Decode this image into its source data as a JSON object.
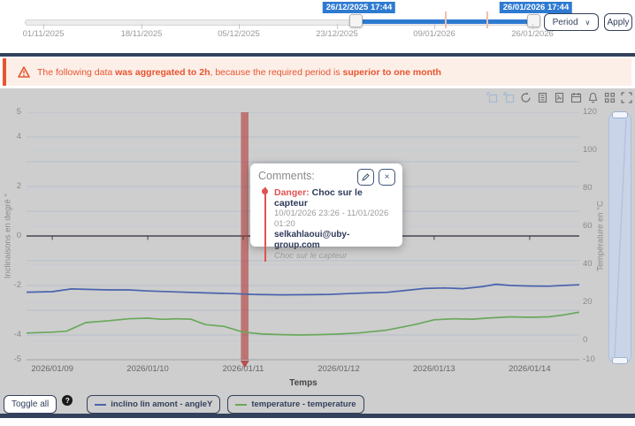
{
  "timeline": {
    "handles": [
      {
        "label": "26/12/2025 17:44"
      },
      {
        "label": "26/01/2026 17:44"
      }
    ],
    "ticks": [
      "01/11/2025",
      "18/11/2025",
      "05/12/2025",
      "23/12/2025",
      "09/01/2026",
      "26/01/2026"
    ],
    "period_button": "Period",
    "period_chevron": "∨",
    "apply_button": "Apply",
    "accent_color": "#2e7ad1"
  },
  "banner": {
    "parts": [
      {
        "text": "The following data ",
        "bold": false
      },
      {
        "text": "was aggregated to 2h",
        "bold": true
      },
      {
        "text": ", because the required period is ",
        "bold": false
      },
      {
        "text": "superior to one month",
        "bold": true
      }
    ],
    "color": "#e8542f"
  },
  "toolbar_icons": [
    "zoom-select",
    "zoom-back",
    "restore",
    "data-view",
    "save-image",
    "calendar",
    "alarm-bell",
    "grid-code",
    "focus"
  ],
  "comments": {
    "title": "Comments:",
    "close_icon": "×",
    "entry": {
      "severity": "Danger:",
      "heading": "Choc sur le capteur",
      "period": "10/01/2026 23:26 - 11/01/2026 01:20",
      "author": "selkahlaoui@uby-group.com",
      "note": "Choc sur le capteur"
    }
  },
  "legend": {
    "toggle_all": "Toggle all",
    "help_badge": "?",
    "items": [
      {
        "label": "inclino lin amont - angleY",
        "color": "#4a63ad"
      },
      {
        "label": "temperature - temperature",
        "color": "#6aa85c"
      }
    ]
  },
  "chart_data": {
    "type": "line",
    "xlabel": "Temps",
    "ylabel_left": "Inclinaisons en degré °",
    "ylabel_right": "Température en °C",
    "x_domain_days": [
      8.73,
      14.52
    ],
    "x_ticks": [
      {
        "day": 9,
        "label": "2026/01/09"
      },
      {
        "day": 10,
        "label": "2026/01/10"
      },
      {
        "day": 11,
        "label": "2026/01/11"
      },
      {
        "day": 12,
        "label": "2026/01/12"
      },
      {
        "day": 13,
        "label": "2026/01/13"
      },
      {
        "day": 14,
        "label": "2026/01/14"
      }
    ],
    "y_left": {
      "min": -5,
      "max": 5,
      "tick_step": 1,
      "labeled_ticks": [
        {
          "v": 5,
          "label": "5"
        },
        {
          "v": 4,
          "label": "4"
        },
        {
          "v": 2,
          "label": "2"
        },
        {
          "v": 0,
          "label": "0"
        },
        {
          "v": -2,
          "label": "-2"
        },
        {
          "v": -4,
          "label": "-4"
        },
        {
          "v": -5,
          "label": "-5"
        }
      ]
    },
    "y_right": {
      "min": -10,
      "max": 120,
      "labeled_ticks": [
        {
          "v": 120,
          "label": "120"
        },
        {
          "v": 100,
          "label": "100"
        },
        {
          "v": 80,
          "label": "80"
        },
        {
          "v": 60,
          "label": "60"
        },
        {
          "v": 40,
          "label": "40"
        },
        {
          "v": 20,
          "label": "20"
        },
        {
          "v": 0,
          "label": "0"
        },
        {
          "v": -10,
          "label": "-10"
        }
      ]
    },
    "series": [
      {
        "name": "inclino lin amont - angleY",
        "axis": "left",
        "color": "#4a63ad",
        "points": [
          [
            8.73,
            -2.27
          ],
          [
            9.0,
            -2.25
          ],
          [
            9.2,
            -2.14
          ],
          [
            9.4,
            -2.16
          ],
          [
            9.6,
            -2.18
          ],
          [
            9.8,
            -2.18
          ],
          [
            10.0,
            -2.22
          ],
          [
            10.3,
            -2.26
          ],
          [
            10.6,
            -2.3
          ],
          [
            10.9,
            -2.33
          ],
          [
            11.1,
            -2.36
          ],
          [
            11.4,
            -2.38
          ],
          [
            11.7,
            -2.37
          ],
          [
            11.9,
            -2.36
          ],
          [
            12.1,
            -2.33
          ],
          [
            12.3,
            -2.3
          ],
          [
            12.5,
            -2.28
          ],
          [
            12.7,
            -2.2
          ],
          [
            12.9,
            -2.12
          ],
          [
            13.1,
            -2.1
          ],
          [
            13.3,
            -2.13
          ],
          [
            13.5,
            -2.05
          ],
          [
            13.65,
            -1.95
          ],
          [
            13.8,
            -2.0
          ],
          [
            14.0,
            -2.02
          ],
          [
            14.2,
            -2.03
          ],
          [
            14.35,
            -2.0
          ],
          [
            14.52,
            -1.97
          ]
        ]
      },
      {
        "name": "temperature - temperature",
        "axis": "right",
        "color": "#6aa85c",
        "points": [
          [
            8.73,
            4.0
          ],
          [
            9.0,
            4.5
          ],
          [
            9.15,
            5.0
          ],
          [
            9.35,
            9.5
          ],
          [
            9.6,
            10.5
          ],
          [
            9.8,
            11.5
          ],
          [
            10.0,
            11.8
          ],
          [
            10.15,
            11.2
          ],
          [
            10.3,
            11.5
          ],
          [
            10.45,
            11.3
          ],
          [
            10.6,
            8.5
          ],
          [
            10.8,
            7.5
          ],
          [
            11.0,
            4.5
          ],
          [
            11.2,
            3.5
          ],
          [
            11.4,
            3.2
          ],
          [
            11.6,
            3.0
          ],
          [
            11.8,
            3.2
          ],
          [
            12.0,
            3.5
          ],
          [
            12.2,
            4.0
          ],
          [
            12.5,
            5.5
          ],
          [
            12.8,
            8.5
          ],
          [
            13.0,
            11.0
          ],
          [
            13.2,
            11.5
          ],
          [
            13.4,
            11.3
          ],
          [
            13.6,
            12.0
          ],
          [
            13.8,
            12.5
          ],
          [
            14.0,
            12.3
          ],
          [
            14.2,
            12.5
          ],
          [
            14.35,
            13.5
          ],
          [
            14.52,
            15.0
          ]
        ]
      }
    ],
    "mark_area": {
      "label": "Danger: Choc sur le capteur",
      "from_day": 10.976,
      "to_day": 11.056,
      "color": "#b23a38"
    }
  }
}
